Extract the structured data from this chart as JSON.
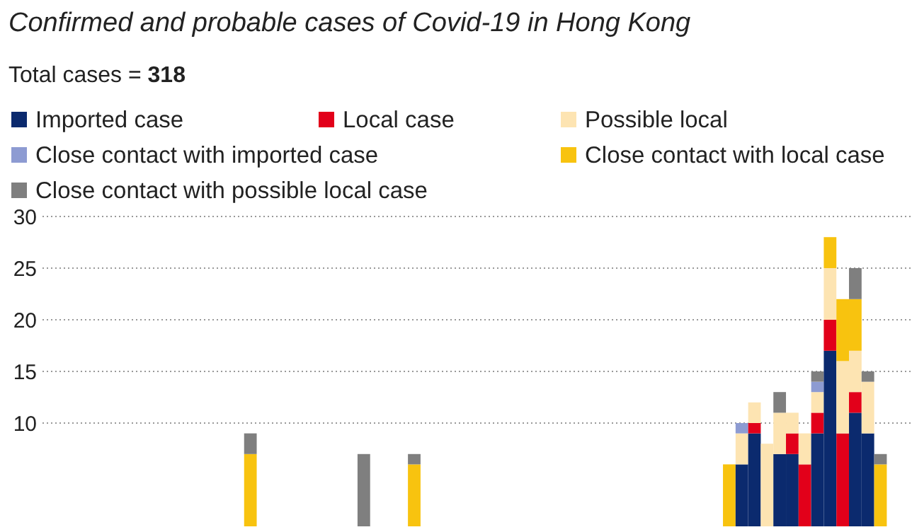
{
  "chart_data": {
    "type": "bar",
    "title": "Confirmed and probable cases of Covid-19 in Hong Kong",
    "subtitle": "Total cases = 318",
    "stacked": true,
    "legend": "top",
    "grid": "y",
    "categories": [
      null,
      null,
      null,
      null,
      null,
      null,
      null,
      null,
      null,
      null,
      null,
      null,
      null,
      null,
      null,
      null,
      null,
      null,
      null,
      null,
      null,
      null,
      null,
      null,
      null,
      null,
      null,
      null,
      null,
      null,
      null,
      null,
      null,
      null,
      null,
      null,
      null,
      null,
      null,
      null,
      null,
      null,
      null,
      null,
      null,
      null,
      null,
      null,
      null,
      null,
      null,
      null,
      null,
      null,
      null,
      null,
      null,
      null,
      null,
      null,
      null,
      null,
      null,
      null,
      null,
      null,
      null,
      null,
      null
    ],
    "ylim": [
      0,
      30
    ],
    "yticks": [
      10,
      15,
      20,
      25,
      30
    ],
    "series": [
      {
        "name": "Imported case",
        "color": "#0b2a6e",
        "values": [
          null,
          null,
          null,
          null,
          null,
          null,
          null,
          null,
          null,
          null,
          null,
          null,
          null,
          null,
          null,
          null,
          null,
          null,
          null,
          null,
          null,
          null,
          null,
          null,
          null,
          null,
          null,
          null,
          null,
          null,
          null,
          null,
          null,
          null,
          null,
          null,
          null,
          null,
          null,
          null,
          null,
          null,
          null,
          null,
          null,
          null,
          null,
          null,
          null,
          null,
          null,
          null,
          null,
          null,
          null,
          6,
          9,
          null,
          7,
          7,
          null,
          9,
          17,
          null,
          11,
          9,
          null,
          null,
          null
        ]
      },
      {
        "name": "Local case",
        "color": "#e2001a",
        "values": [
          null,
          null,
          null,
          null,
          null,
          null,
          null,
          null,
          null,
          null,
          null,
          null,
          null,
          null,
          null,
          null,
          null,
          null,
          null,
          null,
          null,
          null,
          null,
          null,
          null,
          null,
          null,
          null,
          null,
          null,
          null,
          null,
          null,
          null,
          null,
          null,
          null,
          null,
          null,
          null,
          null,
          null,
          null,
          null,
          null,
          null,
          null,
          null,
          null,
          null,
          null,
          null,
          null,
          null,
          null,
          null,
          1,
          null,
          null,
          2,
          6,
          2,
          3,
          9,
          2,
          null,
          null,
          null,
          null
        ]
      },
      {
        "name": "Possible local",
        "color": "#fde4b2",
        "values": [
          null,
          null,
          null,
          null,
          null,
          null,
          null,
          null,
          null,
          null,
          null,
          null,
          null,
          null,
          null,
          null,
          null,
          null,
          null,
          null,
          null,
          null,
          null,
          null,
          null,
          null,
          null,
          null,
          null,
          null,
          null,
          null,
          null,
          null,
          null,
          null,
          null,
          null,
          null,
          null,
          null,
          null,
          null,
          null,
          null,
          null,
          null,
          null,
          null,
          null,
          null,
          null,
          null,
          null,
          null,
          3,
          2,
          8,
          4,
          2,
          3,
          2,
          5,
          7,
          4,
          5,
          null,
          null,
          null
        ]
      },
      {
        "name": "Close contact with imported case",
        "color": "#8d9bd2",
        "values": [
          null,
          null,
          null,
          null,
          null,
          null,
          null,
          null,
          null,
          null,
          null,
          null,
          null,
          null,
          null,
          null,
          null,
          null,
          null,
          null,
          null,
          null,
          null,
          null,
          null,
          null,
          null,
          null,
          null,
          null,
          null,
          null,
          null,
          null,
          null,
          null,
          null,
          null,
          null,
          null,
          null,
          null,
          null,
          null,
          null,
          null,
          null,
          null,
          null,
          null,
          null,
          null,
          null,
          null,
          null,
          1,
          null,
          null,
          null,
          null,
          null,
          1,
          null,
          null,
          null,
          null,
          null,
          null,
          null
        ]
      },
      {
        "name": "Close contact with local case",
        "color": "#f8c30f",
        "values": [
          null,
          null,
          null,
          null,
          null,
          null,
          null,
          null,
          null,
          null,
          null,
          null,
          null,
          null,
          null,
          null,
          7,
          null,
          null,
          null,
          null,
          null,
          null,
          null,
          null,
          null,
          null,
          null,
          null,
          6,
          null,
          null,
          null,
          null,
          null,
          null,
          null,
          null,
          null,
          null,
          null,
          null,
          null,
          null,
          null,
          null,
          null,
          null,
          null,
          null,
          null,
          null,
          null,
          null,
          6,
          null,
          null,
          null,
          null,
          null,
          null,
          null,
          3,
          6,
          5,
          null,
          6,
          null,
          null
        ]
      },
      {
        "name": "Close contact with possible local case",
        "color": "#7f7f7f",
        "values": [
          null,
          null,
          null,
          null,
          null,
          null,
          null,
          null,
          null,
          null,
          null,
          null,
          null,
          null,
          null,
          null,
          2,
          null,
          null,
          null,
          null,
          null,
          null,
          null,
          null,
          7,
          null,
          null,
          null,
          1,
          null,
          null,
          null,
          null,
          null,
          null,
          null,
          null,
          null,
          null,
          null,
          null,
          null,
          null,
          null,
          null,
          null,
          null,
          null,
          null,
          null,
          null,
          null,
          null,
          null,
          null,
          null,
          null,
          2,
          null,
          null,
          1,
          null,
          null,
          3,
          1,
          1,
          null,
          null
        ]
      }
    ]
  }
}
